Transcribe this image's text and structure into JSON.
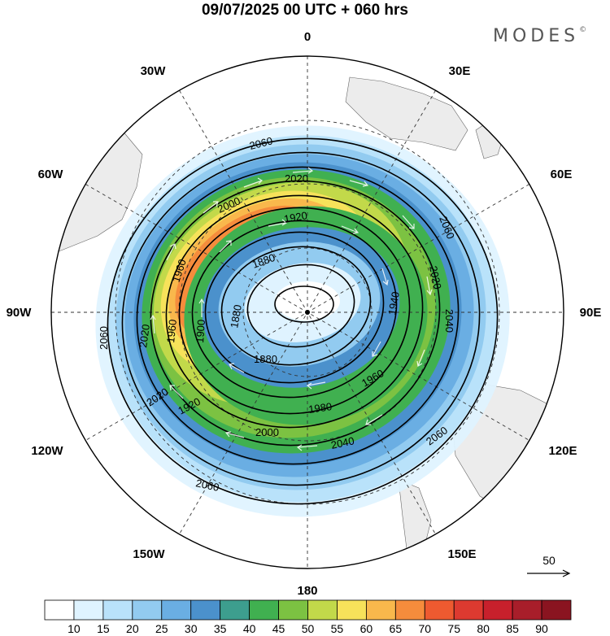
{
  "title": "09/07/2025  00 UTC  + 060 hrs",
  "brand": "MODES",
  "brand_mark": "©",
  "longitude_labels": [
    "0",
    "30E",
    "60E",
    "90E",
    "120E",
    "150E",
    "180",
    "150W",
    "120W",
    "90W",
    "60W",
    "30W"
  ],
  "contours": [
    {
      "value": "2060",
      "label": "2060"
    },
    {
      "value": "2040",
      "label": "2040"
    },
    {
      "value": "2020",
      "label": "2020"
    },
    {
      "value": "2000",
      "label": "2000"
    },
    {
      "value": "1980",
      "label": "1980"
    },
    {
      "value": "1960",
      "label": "1960"
    },
    {
      "value": "1940",
      "label": "1940"
    },
    {
      "value": "1920",
      "label": "1920"
    },
    {
      "value": "1900",
      "label": "1900"
    },
    {
      "value": "1880",
      "label": "1880"
    }
  ],
  "vector_reference": "50",
  "colorbar": {
    "labels": [
      "10",
      "15",
      "20",
      "25",
      "30",
      "35",
      "40",
      "45",
      "50",
      "55",
      "60",
      "65",
      "70",
      "75",
      "80",
      "85",
      "90"
    ],
    "colors": [
      "#ffffff",
      "#dff3ff",
      "#b9e2fa",
      "#92cbf0",
      "#6aaee3",
      "#4b91cc",
      "#3d9e8e",
      "#40b050",
      "#7cc242",
      "#c2d94a",
      "#f7e25a",
      "#f9b84c",
      "#f58c3c",
      "#ee5a30",
      "#dd3a30",
      "#c8202c",
      "#a81e2a",
      "#8a1420"
    ]
  },
  "colors": {
    "land": "#ececec",
    "graticule": "#333333",
    "contour": "#000000",
    "arrows": "#ffffff"
  }
}
